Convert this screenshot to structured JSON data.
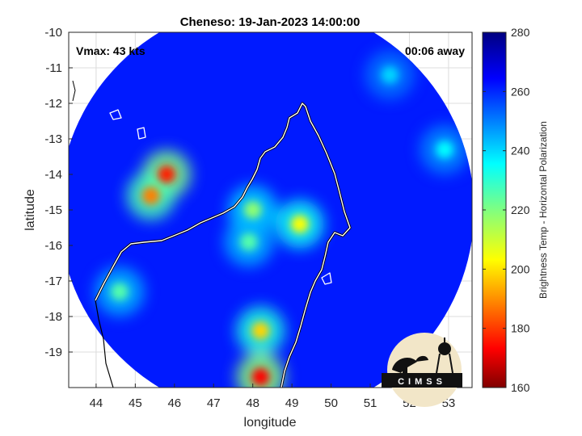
{
  "chart_data": {
    "type": "heatmap",
    "title": "Cheneso: 19-Jan-2023 14:00:00",
    "annotations": {
      "vmax": "Vmax: 43 kts",
      "time_offset": "00:06 away"
    },
    "xlabel": "longitude",
    "ylabel": "latitude",
    "xlim": [
      43.3,
      53.6
    ],
    "ylim": [
      -20.0,
      -10.0
    ],
    "x_ticks": [
      44,
      45,
      46,
      47,
      48,
      49,
      50,
      51,
      52,
      53
    ],
    "y_ticks": [
      -10,
      -11,
      -12,
      -13,
      -14,
      -15,
      -16,
      -17,
      -18,
      -19
    ],
    "grid": true,
    "colorbar": {
      "label": "Brightness Temp - Horizontal Polarization",
      "range": [
        160,
        280
      ],
      "ticks": [
        160,
        180,
        200,
        220,
        240,
        260,
        280
      ],
      "colormap": "jet"
    },
    "swath": {
      "center_lon": 48.35,
      "center_lat": -15.0,
      "radius_deg": 5.3
    },
    "background_temp": 262,
    "features": [
      {
        "lon": 45.8,
        "lat": -14.0,
        "value": 178
      },
      {
        "lon": 45.4,
        "lat": -14.6,
        "value": 190
      },
      {
        "lon": 48.0,
        "lat": -15.0,
        "value": 218
      },
      {
        "lon": 49.2,
        "lat": -15.4,
        "value": 205
      },
      {
        "lon": 47.9,
        "lat": -15.9,
        "value": 225
      },
      {
        "lon": 48.2,
        "lat": -18.4,
        "value": 200
      },
      {
        "lon": 48.2,
        "lat": -19.7,
        "value": 175
      },
      {
        "lon": 44.6,
        "lat": -17.3,
        "value": 225
      },
      {
        "lon": 52.9,
        "lat": -13.3,
        "value": 235
      },
      {
        "lon": 51.5,
        "lat": -11.2,
        "value": 240
      }
    ],
    "logo_text": "CIMSS"
  }
}
